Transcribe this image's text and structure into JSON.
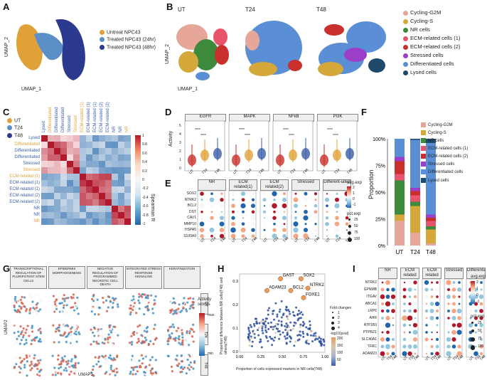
{
  "panels": {
    "A": {
      "label": "A",
      "xlabel": "UMAP_1",
      "ylabel": "UMAP_2",
      "legend": [
        {
          "text": "Untreat NPC43",
          "color": "#e0a238"
        },
        {
          "text": "Treated NPC43 (24hr)",
          "color": "#5a8fc8"
        },
        {
          "text": "Treated NPC43 (48hr)",
          "color": "#2b3a8f"
        }
      ]
    },
    "B": {
      "label": "B",
      "titles": [
        "UT",
        "T24",
        "T48"
      ],
      "xlabel": "UMAP_1",
      "ylabel": "UMAP_2",
      "legend": [
        {
          "text": "Cycling-G2M",
          "color": "#e6a79a"
        },
        {
          "text": "Cycling-S",
          "color": "#d4a83a"
        },
        {
          "text": "NR cells",
          "color": "#3d8a3d"
        },
        {
          "text": "ECM-related cells (1)",
          "color": "#e8556a"
        },
        {
          "text": "ECM-related cells (2)",
          "color": "#c9302c"
        },
        {
          "text": "Stressed cells",
          "color": "#9b3fc9"
        },
        {
          "text": "Differentiated cells",
          "color": "#5a8fd6"
        },
        {
          "text": "Lysed cells",
          "color": "#1f4a6b"
        }
      ]
    },
    "C": {
      "label": "C",
      "legend": [
        {
          "text": "UT",
          "color": "#e0a238"
        },
        {
          "text": "T24",
          "color": "#5a8fc8"
        },
        {
          "text": "T48",
          "color": "#2b3a8f"
        }
      ],
      "rows": [
        {
          "text": "Lysed",
          "color": "#3a5ea8"
        },
        {
          "text": "Differentiated",
          "color": "#e0a238"
        },
        {
          "text": "Differentiated",
          "color": "#3a5ea8"
        },
        {
          "text": "Differentiated",
          "color": "#3a5ea8"
        },
        {
          "text": "Stressed",
          "color": "#3a5ea8"
        },
        {
          "text": "Stressed",
          "color": "#e0a238"
        },
        {
          "text": "ECM-related (1)",
          "color": "#e0a238"
        },
        {
          "text": "ECM-related (1)",
          "color": "#3a5ea8"
        },
        {
          "text": "ECM-related (1)",
          "color": "#3a5ea8"
        },
        {
          "text": "ECM-related (2)",
          "color": "#3a5ea8"
        },
        {
          "text": "ECM-related (2)",
          "color": "#3a5ea8"
        },
        {
          "text": "NR",
          "color": "#3a5ea8"
        },
        {
          "text": "NR",
          "color": "#3a5ea8"
        },
        {
          "text": "NR",
          "color": "#e0a238"
        }
      ],
      "scale_ticks": [
        "1",
        "0.8",
        "0.6",
        "0.4",
        "0.2",
        "0",
        "-0.2",
        "-0.4",
        "-0.6",
        "-0.8",
        "-1"
      ],
      "scale_label": "Spearman R"
    },
    "D": {
      "label": "D",
      "ylabel": "Activity",
      "titles": [
        "EGFR",
        "MAPK",
        "NFkB",
        "PI3K"
      ],
      "xticks": [
        "UT",
        "T24",
        "T48"
      ],
      "sig": "****",
      "yticks": [
        "0",
        "1",
        "2",
        "3",
        "4",
        "5"
      ]
    },
    "E": {
      "label": "E",
      "groups": [
        "NR",
        "ECM related(1)",
        "ECM related(2)",
        "Stressed",
        "Different-iated"
      ],
      "genes": [
        "SOX2",
        "NTRK2",
        "BCL2",
        "DST",
        "CAV1",
        "MMP10",
        "HSPA5",
        "S100A9"
      ],
      "xticks": [
        "UT",
        "T24",
        "T48"
      ],
      "avg_title": "avg.exp",
      "avg_ticks": [
        "2",
        "1",
        "0",
        "-1"
      ],
      "pct_title": "pct.exp",
      "pct_ticks": [
        "25",
        "50",
        "75",
        "100"
      ]
    },
    "F": {
      "label": "F",
      "ylabel": "Proportion",
      "yticks": [
        "100%",
        "75%",
        "50%",
        "25%",
        "0%"
      ],
      "xticks": [
        "UT",
        "T24",
        "T48"
      ],
      "legend": [
        {
          "text": "Cycling-G2M",
          "color": "#e6a79a"
        },
        {
          "text": "Cycling-S",
          "color": "#d4a83a"
        },
        {
          "text": "NR cells",
          "color": "#3d8a3d"
        },
        {
          "text": "ECM-related cells (1)",
          "color": "#e8556a"
        },
        {
          "text": "ECM-related cells (2)",
          "color": "#c9302c"
        },
        {
          "text": "Stressed cells",
          "color": "#9b3fc9"
        },
        {
          "text": "Differentiated cells",
          "color": "#5a8fd6"
        },
        {
          "text": "Lysed cells",
          "color": "#1f4a6b"
        }
      ]
    },
    "G": {
      "label": "G",
      "titles": [
        "TRANSCRIPTIONAL REGULATION OF PLURIPOTENT STEM CELLS",
        "EPIDERMIS MORPHOGENESIS",
        "NEGATIVE REGULATION OF PROGRAMMED NECROTIC CELL DEATH",
        "INTEGRATED STRESS RESPONSE SIGNALING",
        "KERATINIZATION"
      ],
      "rows": [
        "UT",
        "T24",
        "T48"
      ],
      "xlabel": "UMAP1",
      "ylabel": "UMAP2",
      "scale_title": "Activity scores",
      "scale_max": "max",
      "scale_min": "min"
    },
    "H": {
      "label": "H",
      "xlabel": "Proportion of cells expressed markers in NR cells(T48)",
      "ylabel": "Proportion difference between NR cells(T48) and others(T48)",
      "xticks": [
        "0.00",
        "0.25",
        "0.50",
        "0.75",
        "1.00"
      ],
      "yticks": [
        "0.3",
        "0.2",
        "0.1",
        "0.0"
      ],
      "genes": [
        "GAST",
        "SOX2",
        "ADAM23",
        "BCL2",
        "NTRK2",
        "FOXE1"
      ],
      "fold_title": "Fold changes",
      "fold_ticks": [
        "1",
        "2",
        "3",
        "4"
      ],
      "pv_title": "-log10(pval)",
      "pv_ticks": [
        "200",
        "150",
        "100",
        "50"
      ]
    },
    "I": {
      "label": "I",
      "groups": [
        "NR",
        "ECM related (1)",
        "ECM related (2)",
        "Stressed",
        "Differentiated"
      ],
      "genes": [
        "NTRK2",
        "GPNMB",
        "ITGAV",
        "ABCA1",
        "LRP6",
        "AHR",
        "ATP1B3",
        "PTPRZ1",
        "SLC40A1",
        "TFRC",
        "ADAM23"
      ],
      "xticks": [
        "UT",
        "T24",
        "T48"
      ],
      "avg_title": "avg.exp",
      "avg_ticks": [
        "2",
        "1",
        "0",
        "-1"
      ],
      "pct_title": "pct.exp",
      "pct_ticks": [
        "25",
        "50",
        "75",
        "100"
      ]
    }
  },
  "chart_data": [
    {
      "type": "bar",
      "title": "F",
      "categories": [
        "UT",
        "T24",
        "T48"
      ],
      "series": [
        {
          "name": "Cycling-G2M",
          "values": [
            23,
            12,
            2
          ]
        },
        {
          "name": "Cycling-S",
          "values": [
            6,
            25,
            13
          ]
        },
        {
          "name": "NR cells",
          "values": [
            32,
            4,
            3
          ]
        },
        {
          "name": "ECM-related cells (1)",
          "values": [
            6,
            6,
            5
          ]
        },
        {
          "name": "ECM-related cells (2)",
          "values": [
            12,
            4,
            3
          ]
        },
        {
          "name": "Stressed cells",
          "values": [
            4,
            3,
            3
          ]
        },
        {
          "name": "Differentiated cells",
          "values": [
            17,
            45,
            67
          ]
        },
        {
          "name": "Lysed cells",
          "values": [
            0,
            1,
            4
          ]
        }
      ],
      "ylabel": "Proportion",
      "ylim": [
        0,
        100
      ]
    }
  ]
}
